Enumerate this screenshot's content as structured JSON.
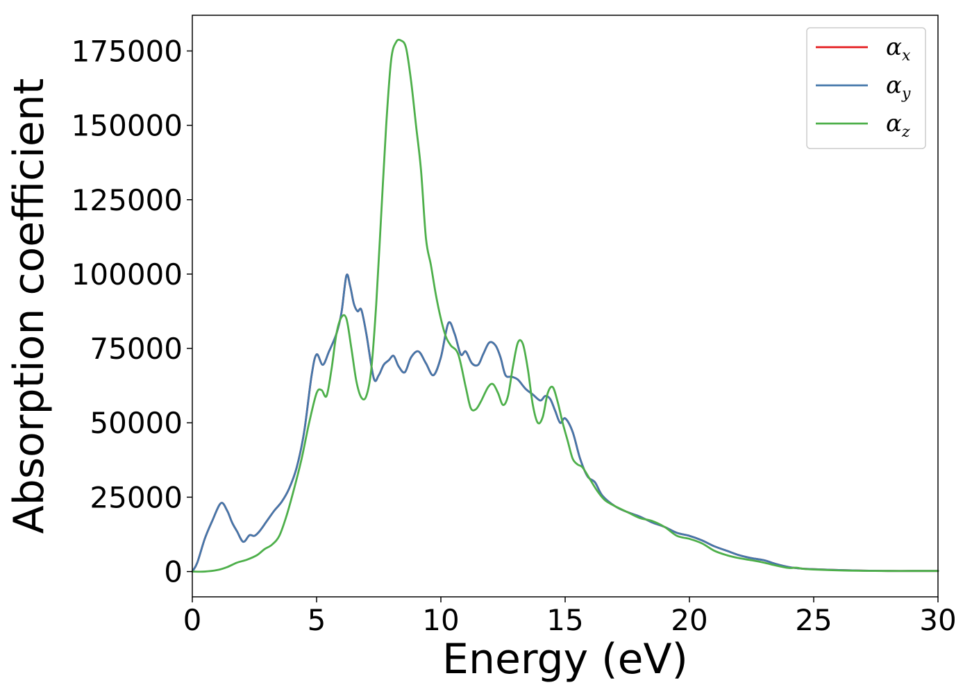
{
  "chart_data": {
    "type": "line",
    "xlabel": "Energy (eV)",
    "ylabel": "Absorption coefficient",
    "xlim": [
      0,
      30
    ],
    "ylim": [
      -8500,
      187000
    ],
    "xticks": [
      0,
      5,
      10,
      15,
      20,
      25,
      30
    ],
    "yticks": [
      0,
      25000,
      50000,
      75000,
      100000,
      125000,
      150000,
      175000
    ],
    "grid": false,
    "legend_position": "top-right",
    "series": [
      {
        "name": "α",
        "sub": "x",
        "color": "#e41a1c",
        "x": [
          0,
          0.2,
          0.5,
          0.8,
          1.15,
          1.4,
          1.6,
          1.8,
          2.05,
          2.3,
          2.5,
          2.7,
          3.0,
          3.3,
          3.6,
          3.9,
          4.2,
          4.5,
          4.8,
          5.0,
          5.25,
          5.5,
          5.8,
          6.0,
          6.2,
          6.35,
          6.5,
          6.65,
          6.8,
          7.0,
          7.3,
          7.5,
          7.7,
          7.9,
          8.1,
          8.3,
          8.55,
          8.8,
          9.1,
          9.4,
          9.7,
          10.0,
          10.3,
          10.55,
          10.8,
          11.0,
          11.25,
          11.5,
          11.7,
          11.95,
          12.2,
          12.4,
          12.6,
          12.85,
          13.1,
          13.4,
          13.7,
          14.0,
          14.2,
          14.4,
          14.6,
          14.8,
          15.0,
          15.3,
          15.6,
          15.9,
          16.2,
          16.5,
          17.0,
          17.5,
          18.0,
          18.5,
          19.0,
          19.5,
          20.0,
          20.5,
          21.0,
          21.5,
          22.0,
          22.5,
          23.0,
          23.5,
          24.0,
          24.5,
          25.0,
          26.0,
          27.0,
          28.0,
          29.0,
          30.0
        ],
        "values": [
          0,
          3000,
          11000,
          17000,
          23000,
          20500,
          16500,
          13500,
          10000,
          12200,
          12000,
          13500,
          17000,
          20500,
          23500,
          28000,
          35000,
          47000,
          66000,
          73000,
          69500,
          74000,
          80000,
          87000,
          99500,
          96000,
          90000,
          87500,
          88000,
          80000,
          65000,
          66000,
          69500,
          71000,
          72500,
          69000,
          67000,
          72000,
          74000,
          70000,
          66000,
          72000,
          83500,
          80000,
          73000,
          74000,
          70000,
          69500,
          73000,
          77000,
          76000,
          72000,
          66000,
          65500,
          64500,
          61500,
          59500,
          57500,
          59000,
          58000,
          54000,
          50000,
          51500,
          47000,
          38000,
          32000,
          30000,
          25500,
          22000,
          20000,
          18500,
          16500,
          15000,
          13000,
          12000,
          10500,
          8500,
          7000,
          5500,
          4500,
          3800,
          2500,
          1500,
          1000,
          800,
          500,
          300,
          200,
          200,
          200
        ]
      },
      {
        "name": "α",
        "sub": "y",
        "color": "#4477aa",
        "x": [
          0,
          0.2,
          0.5,
          0.8,
          1.15,
          1.4,
          1.6,
          1.8,
          2.05,
          2.3,
          2.5,
          2.7,
          3.0,
          3.3,
          3.6,
          3.9,
          4.2,
          4.5,
          4.8,
          5.0,
          5.25,
          5.5,
          5.8,
          6.0,
          6.2,
          6.35,
          6.5,
          6.65,
          6.8,
          7.0,
          7.3,
          7.5,
          7.7,
          7.9,
          8.1,
          8.3,
          8.55,
          8.8,
          9.1,
          9.4,
          9.7,
          10.0,
          10.3,
          10.55,
          10.8,
          11.0,
          11.25,
          11.5,
          11.7,
          11.95,
          12.2,
          12.4,
          12.6,
          12.85,
          13.1,
          13.4,
          13.7,
          14.0,
          14.2,
          14.4,
          14.6,
          14.8,
          15.0,
          15.3,
          15.6,
          15.9,
          16.2,
          16.5,
          17.0,
          17.5,
          18.0,
          18.5,
          19.0,
          19.5,
          20.0,
          20.5,
          21.0,
          21.5,
          22.0,
          22.5,
          23.0,
          23.5,
          24.0,
          24.5,
          25.0,
          26.0,
          27.0,
          28.0,
          29.0,
          30.0
        ],
        "values": [
          0,
          3000,
          11000,
          17000,
          23000,
          20500,
          16500,
          13500,
          10000,
          12200,
          12000,
          13500,
          17000,
          20500,
          23500,
          28000,
          35000,
          47000,
          66000,
          73000,
          69500,
          74000,
          80000,
          87000,
          99500,
          96000,
          90000,
          87500,
          88000,
          80000,
          65000,
          66000,
          69500,
          71000,
          72500,
          69000,
          67000,
          72000,
          74000,
          70000,
          66000,
          72000,
          83500,
          80000,
          73000,
          74000,
          70000,
          69500,
          73000,
          77000,
          76000,
          72000,
          66000,
          65500,
          64500,
          61500,
          59500,
          57500,
          59000,
          58000,
          54000,
          50000,
          51500,
          47000,
          38000,
          32000,
          30000,
          25500,
          22000,
          20000,
          18500,
          16500,
          15000,
          13000,
          12000,
          10500,
          8500,
          7000,
          5500,
          4500,
          3800,
          2500,
          1500,
          1000,
          800,
          500,
          300,
          200,
          200,
          200
        ]
      },
      {
        "name": "α",
        "sub": "z",
        "color": "#4daf4a",
        "x": [
          0,
          0.5,
          1.0,
          1.4,
          1.8,
          2.2,
          2.6,
          2.9,
          3.2,
          3.5,
          3.8,
          4.1,
          4.4,
          4.7,
          5.0,
          5.2,
          5.4,
          5.6,
          5.8,
          6.0,
          6.2,
          6.4,
          6.6,
          6.8,
          7.0,
          7.2,
          7.4,
          7.6,
          7.8,
          8.0,
          8.2,
          8.4,
          8.6,
          8.8,
          9.0,
          9.2,
          9.4,
          9.6,
          9.8,
          10.0,
          10.2,
          10.4,
          10.7,
          11.0,
          11.2,
          11.4,
          11.6,
          11.9,
          12.1,
          12.3,
          12.5,
          12.7,
          12.9,
          13.1,
          13.3,
          13.5,
          13.7,
          13.9,
          14.1,
          14.3,
          14.5,
          14.7,
          14.9,
          15.1,
          15.3,
          15.5,
          15.7,
          16.0,
          16.3,
          16.6,
          17.0,
          17.5,
          18.0,
          18.5,
          19.0,
          19.5,
          20.0,
          20.5,
          21.0,
          21.5,
          22.0,
          22.5,
          23.0,
          23.5,
          24.0,
          24.3,
          24.6,
          25.0,
          26.0,
          27.0,
          28.0,
          29.0,
          30.0
        ],
        "values": [
          0,
          0,
          500,
          1500,
          3000,
          4000,
          5500,
          7500,
          9000,
          12000,
          19000,
          28000,
          38000,
          50000,
          60000,
          61000,
          59000,
          68000,
          80000,
          85500,
          85000,
          75000,
          64000,
          58500,
          59000,
          68000,
          90000,
          120000,
          150000,
          172000,
          178000,
          178500,
          176000,
          165000,
          150000,
          135000,
          112000,
          103000,
          93000,
          85000,
          79000,
          76000,
          73000,
          62000,
          55000,
          54500,
          57000,
          62000,
          63000,
          60000,
          56000,
          59000,
          69000,
          77000,
          76500,
          68000,
          56000,
          50000,
          52000,
          60000,
          62000,
          57000,
          50000,
          44000,
          38000,
          36000,
          35000,
          31000,
          27000,
          24000,
          22000,
          20000,
          18000,
          17000,
          15000,
          12000,
          11000,
          9500,
          7000,
          5500,
          4500,
          3800,
          3000,
          2000,
          1200,
          1300,
          900,
          700,
          400,
          250,
          200,
          200,
          200
        ]
      }
    ]
  }
}
